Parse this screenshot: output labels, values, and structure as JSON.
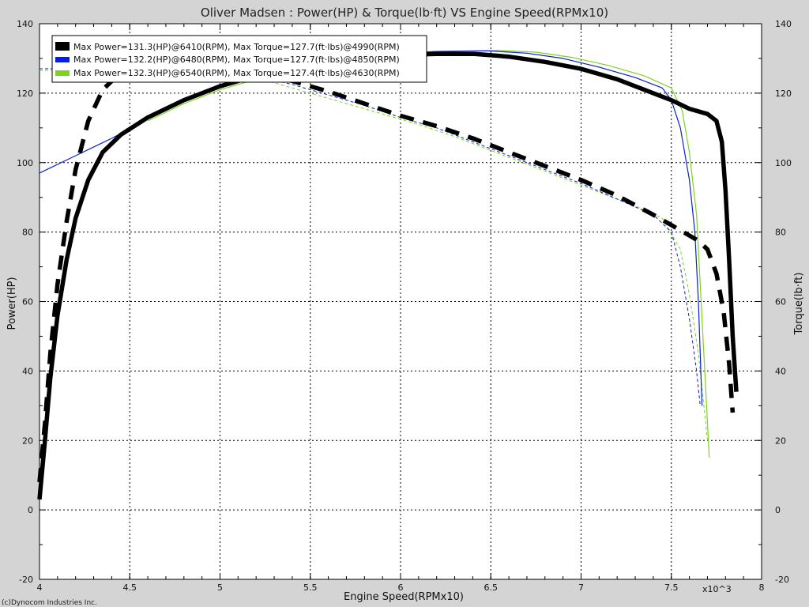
{
  "chart_data": {
    "type": "line",
    "title": "Oliver Madsen : Power(HP) & Torque(lb·ft) VS Engine Speed(RPMx10)",
    "xlabel": "Engine Speed(RPMx10)",
    "ylabel_left": "Power(HP)",
    "ylabel_right": "Torque(lb·ft)",
    "x_multiplier_label": "x10^3",
    "xlim": [
      4,
      8
    ],
    "ylim": [
      -20,
      140
    ],
    "x_ticks": [
      "4",
      "4.5",
      "5",
      "5.5",
      "6",
      "6.5",
      "7",
      "7.5",
      "8"
    ],
    "y_ticks": [
      "140",
      "120",
      "100",
      "80",
      "60",
      "40",
      "20",
      "0",
      "-20"
    ],
    "grid": true,
    "legend_position": "top-left",
    "credit": "(c)Dynocom Industries Inc.",
    "series": [
      {
        "legend": "Max Power=131.3(HP)@6410(RPM), Max Torque=127.7(ft·lbs)@4990(RPM)",
        "color": "#000000",
        "power": [
          [
            4.0,
            3
          ],
          [
            4.03,
            20
          ],
          [
            4.06,
            38
          ],
          [
            4.1,
            56
          ],
          [
            4.15,
            72
          ],
          [
            4.2,
            84
          ],
          [
            4.27,
            95
          ],
          [
            4.35,
            103
          ],
          [
            4.45,
            108
          ],
          [
            4.6,
            113
          ],
          [
            4.8,
            118
          ],
          [
            5.0,
            122
          ],
          [
            5.2,
            125
          ],
          [
            5.4,
            127.5
          ],
          [
            5.6,
            129
          ],
          [
            5.8,
            130.3
          ],
          [
            6.0,
            131
          ],
          [
            6.2,
            131.3
          ],
          [
            6.41,
            131.3
          ],
          [
            6.6,
            130.5
          ],
          [
            6.8,
            129
          ],
          [
            7.0,
            127
          ],
          [
            7.2,
            124
          ],
          [
            7.4,
            120
          ],
          [
            7.5,
            118
          ],
          [
            7.6,
            115.5
          ],
          [
            7.7,
            114
          ],
          [
            7.75,
            112
          ],
          [
            7.78,
            106
          ],
          [
            7.8,
            92
          ],
          [
            7.82,
            72
          ],
          [
            7.84,
            50
          ],
          [
            7.86,
            34
          ]
        ],
        "torque": [
          [
            4.0,
            8
          ],
          [
            4.03,
            25
          ],
          [
            4.06,
            45
          ],
          [
            4.1,
            65
          ],
          [
            4.15,
            83
          ],
          [
            4.2,
            98
          ],
          [
            4.27,
            112
          ],
          [
            4.35,
            121
          ],
          [
            4.45,
            126
          ],
          [
            4.6,
            127.3
          ],
          [
            4.8,
            127.6
          ],
          [
            4.99,
            127.7
          ],
          [
            5.2,
            126
          ],
          [
            5.4,
            123.5
          ],
          [
            5.6,
            120.5
          ],
          [
            5.8,
            117
          ],
          [
            6.0,
            113.5
          ],
          [
            6.2,
            110.5
          ],
          [
            6.4,
            107
          ],
          [
            6.6,
            103
          ],
          [
            6.8,
            99
          ],
          [
            7.0,
            95
          ],
          [
            7.2,
            90.5
          ],
          [
            7.4,
            85
          ],
          [
            7.5,
            82
          ],
          [
            7.6,
            79
          ],
          [
            7.65,
            77.5
          ],
          [
            7.7,
            75
          ],
          [
            7.75,
            68
          ],
          [
            7.79,
            57
          ],
          [
            7.82,
            42
          ],
          [
            7.84,
            28
          ]
        ]
      },
      {
        "legend": "Max Power=132.2(HP)@6480(RPM), Max Torque=127.7(ft·lbs)@4850(RPM)",
        "color": "#0a1fd6",
        "power": [
          [
            4.0,
            97
          ],
          [
            4.2,
            102
          ],
          [
            4.4,
            107
          ],
          [
            4.6,
            112.5
          ],
          [
            4.8,
            117.5
          ],
          [
            5.0,
            121.5
          ],
          [
            5.2,
            124.5
          ],
          [
            5.4,
            127
          ],
          [
            5.6,
            129
          ],
          [
            5.8,
            130.5
          ],
          [
            6.0,
            131.5
          ],
          [
            6.2,
            132
          ],
          [
            6.48,
            132.2
          ],
          [
            6.7,
            131.5
          ],
          [
            6.9,
            130
          ],
          [
            7.1,
            127.5
          ],
          [
            7.3,
            124.5
          ],
          [
            7.45,
            121.5
          ],
          [
            7.5,
            118
          ],
          [
            7.55,
            110
          ],
          [
            7.6,
            95
          ],
          [
            7.63,
            80
          ],
          [
            7.65,
            60
          ],
          [
            7.66,
            45
          ],
          [
            7.67,
            30
          ]
        ],
        "torque": [
          [
            4.0,
            127
          ],
          [
            4.3,
            127.3
          ],
          [
            4.6,
            127.5
          ],
          [
            4.85,
            127.7
          ],
          [
            5.0,
            127
          ],
          [
            5.2,
            125
          ],
          [
            5.4,
            122.5
          ],
          [
            5.6,
            119.5
          ],
          [
            5.8,
            116.5
          ],
          [
            6.0,
            113
          ],
          [
            6.2,
            110
          ],
          [
            6.4,
            106
          ],
          [
            6.6,
            102
          ],
          [
            6.8,
            98
          ],
          [
            7.0,
            94
          ],
          [
            7.2,
            89.5
          ],
          [
            7.4,
            85
          ],
          [
            7.5,
            80
          ],
          [
            7.55,
            70
          ],
          [
            7.6,
            55
          ],
          [
            7.64,
            40
          ],
          [
            7.66,
            30
          ]
        ]
      },
      {
        "legend": "Max Power=132.3(HP)@6540(RPM), Max Torque=127.4(ft·lbs)@4630(RPM)",
        "color": "#7ed321",
        "power": [
          [
            4.6,
            112
          ],
          [
            4.8,
            117
          ],
          [
            5.0,
            121
          ],
          [
            5.2,
            124
          ],
          [
            5.4,
            126.5
          ],
          [
            5.6,
            128.7
          ],
          [
            5.8,
            130.3
          ],
          [
            6.0,
            131.4
          ],
          [
            6.2,
            132
          ],
          [
            6.54,
            132.3
          ],
          [
            6.75,
            131.8
          ],
          [
            6.95,
            130.3
          ],
          [
            7.15,
            128
          ],
          [
            7.35,
            125
          ],
          [
            7.5,
            121.5
          ],
          [
            7.56,
            115
          ],
          [
            7.6,
            103
          ],
          [
            7.64,
            85
          ],
          [
            7.66,
            65
          ],
          [
            7.68,
            45
          ],
          [
            7.7,
            25
          ],
          [
            7.71,
            15
          ]
        ],
        "torque": [
          [
            4.0,
            126.5
          ],
          [
            4.3,
            127
          ],
          [
            4.63,
            127.4
          ],
          [
            4.9,
            127
          ],
          [
            5.1,
            125.5
          ],
          [
            5.3,
            123
          ],
          [
            5.5,
            120
          ],
          [
            5.7,
            117
          ],
          [
            5.9,
            114
          ],
          [
            6.1,
            111
          ],
          [
            6.3,
            107.5
          ],
          [
            6.5,
            103.5
          ],
          [
            6.7,
            99.5
          ],
          [
            6.9,
            95.5
          ],
          [
            7.1,
            91.5
          ],
          [
            7.3,
            87.5
          ],
          [
            7.45,
            84
          ],
          [
            7.55,
            75
          ],
          [
            7.6,
            62
          ],
          [
            7.65,
            45
          ],
          [
            7.68,
            30
          ],
          [
            7.7,
            20
          ]
        ]
      }
    ]
  }
}
